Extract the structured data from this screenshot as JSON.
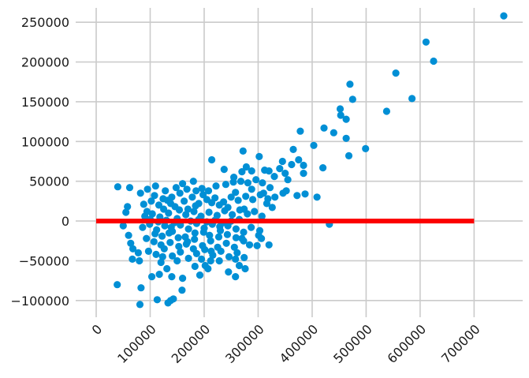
{
  "chart_data": {
    "type": "scatter",
    "title": "",
    "xlabel": "",
    "ylabel": "",
    "xlim": [
      -38000,
      790000
    ],
    "ylim": [
      -121000,
      268000
    ],
    "grid": true,
    "x_ticks": [
      0,
      100000,
      200000,
      300000,
      400000,
      500000,
      600000,
      700000
    ],
    "x_tick_labels": [
      "0",
      "100000",
      "200000",
      "300000",
      "400000",
      "500000",
      "600000",
      "700000"
    ],
    "y_ticks": [
      -100000,
      -50000,
      0,
      50000,
      100000,
      150000,
      200000,
      250000
    ],
    "y_tick_labels": [
      "−100000",
      "−50000",
      "0",
      "50000",
      "100000",
      "150000",
      "200000",
      "250000"
    ],
    "colors": {
      "points": "#008fd5",
      "hline": "#fc0000",
      "background": "#ffffff",
      "grid": "#cbcbcb"
    },
    "hline": {
      "y": 0,
      "xmin": 0,
      "xmax": 700000,
      "color": "#fc0000"
    },
    "series": [
      {
        "points": [
          [
            755000,
            258000
          ],
          [
            611000,
            225000
          ],
          [
            625000,
            201000
          ],
          [
            555000,
            186000
          ],
          [
            585000,
            154000
          ],
          [
            470000,
            172000
          ],
          [
            475000,
            153000
          ],
          [
            538000,
            138000
          ],
          [
            452000,
            141000
          ],
          [
            453000,
            133000
          ],
          [
            463000,
            128000
          ],
          [
            422000,
            117000
          ],
          [
            440000,
            111000
          ],
          [
            378000,
            113000
          ],
          [
            499000,
            91000
          ],
          [
            403000,
            95000
          ],
          [
            463000,
            104000
          ],
          [
            468000,
            82000
          ],
          [
            365000,
            90000
          ],
          [
            375000,
            77000
          ],
          [
            362000,
            71000
          ],
          [
            384000,
            70000
          ],
          [
            384000,
            60000
          ],
          [
            345000,
            75000
          ],
          [
            420000,
            67000
          ],
          [
            272000,
            88000
          ],
          [
            302000,
            81000
          ],
          [
            312000,
            64000
          ],
          [
            320000,
            63000
          ],
          [
            330000,
            56000
          ],
          [
            340000,
            66000
          ],
          [
            350000,
            60000
          ],
          [
            355000,
            52000
          ],
          [
            237000,
            65000
          ],
          [
            255000,
            55000
          ],
          [
            270000,
            62000
          ],
          [
            278000,
            68000
          ],
          [
            288000,
            63000
          ],
          [
            214000,
            77000
          ],
          [
            409000,
            30000
          ],
          [
            372000,
            32000
          ],
          [
            387000,
            34000
          ],
          [
            352000,
            38000
          ],
          [
            346000,
            35000
          ],
          [
            331000,
            30000
          ],
          [
            432000,
            -4000
          ],
          [
            310000,
            35000
          ],
          [
            322000,
            42000
          ],
          [
            40000,
            43000
          ],
          [
            62000,
            42000
          ],
          [
            58000,
            18000
          ],
          [
            55000,
            11000
          ],
          [
            50000,
            -6000
          ],
          [
            60000,
            -18000
          ],
          [
            64000,
            -28000
          ],
          [
            68000,
            -35000
          ],
          [
            67000,
            -48000
          ],
          [
            80000,
            -50000
          ],
          [
            78000,
            -40000
          ],
          [
            39000,
            -80000
          ],
          [
            83000,
            -84000
          ],
          [
            81000,
            -105000
          ],
          [
            113000,
            -99000
          ],
          [
            138000,
            -100000
          ],
          [
            143000,
            -98000
          ],
          [
            133000,
            -103000
          ],
          [
            103000,
            -70000
          ],
          [
            117000,
            -67000
          ],
          [
            120000,
            -52000
          ],
          [
            131000,
            -60000
          ],
          [
            140000,
            -70000
          ],
          [
            160000,
            -72000
          ],
          [
            159000,
            -87000
          ],
          [
            183000,
            -57000
          ],
          [
            192000,
            -68000
          ],
          [
            202000,
            -56000
          ],
          [
            207000,
            -60000
          ],
          [
            212000,
            -50000
          ],
          [
            228000,
            -50000
          ],
          [
            245000,
            -64000
          ],
          [
            258000,
            -70000
          ],
          [
            265000,
            -56000
          ],
          [
            276000,
            -60000
          ],
          [
            258000,
            -48000
          ],
          [
            274000,
            -46000
          ],
          [
            298000,
            -31000
          ],
          [
            320000,
            -30000
          ],
          [
            306000,
            -22000
          ],
          [
            82000,
            35000
          ],
          [
            95000,
            40000
          ],
          [
            110000,
            44000
          ],
          [
            128000,
            38000
          ],
          [
            148000,
            42000
          ],
          [
            160000,
            47000
          ],
          [
            180000,
            50000
          ],
          [
            196000,
            41000
          ],
          [
            208000,
            38000
          ],
          [
            222000,
            44000
          ],
          [
            240000,
            46000
          ],
          [
            254000,
            49000
          ],
          [
            268000,
            50000
          ],
          [
            281000,
            48000
          ],
          [
            296000,
            52000
          ],
          [
            308000,
            48000
          ],
          [
            88000,
            21000
          ],
          [
            102000,
            25000
          ],
          [
            116000,
            20000
          ],
          [
            132000,
            26000
          ],
          [
            146000,
            18000
          ],
          [
            163000,
            25000
          ],
          [
            178000,
            30000
          ],
          [
            190000,
            22000
          ],
          [
            205000,
            27000
          ],
          [
            220000,
            29000
          ],
          [
            236000,
            24000
          ],
          [
            250000,
            30000
          ],
          [
            263000,
            26000
          ],
          [
            277000,
            31000
          ],
          [
            290000,
            27000
          ],
          [
            304000,
            33000
          ],
          [
            316000,
            22000
          ],
          [
            326000,
            17000
          ],
          [
            90000,
            6000
          ],
          [
            104000,
            9000
          ],
          [
            118000,
            5000
          ],
          [
            134000,
            10000
          ],
          [
            150000,
            3000
          ],
          [
            166000,
            8000
          ],
          [
            181000,
            12000
          ],
          [
            194000,
            6000
          ],
          [
            209000,
            11000
          ],
          [
            224000,
            7000
          ],
          [
            238000,
            13000
          ],
          [
            252000,
            8000
          ],
          [
            266000,
            14000
          ],
          [
            280000,
            9000
          ],
          [
            293000,
            12000
          ],
          [
            307000,
            6000
          ],
          [
            86000,
            -8000
          ],
          [
            99000,
            -4000
          ],
          [
            112000,
            -11000
          ],
          [
            127000,
            -6000
          ],
          [
            141000,
            -13000
          ],
          [
            156000,
            -5000
          ],
          [
            171000,
            -10000
          ],
          [
            186000,
            -3000
          ],
          [
            200000,
            -9000
          ],
          [
            215000,
            -4000
          ],
          [
            230000,
            -12000
          ],
          [
            244000,
            -6000
          ],
          [
            259000,
            -10000
          ],
          [
            273000,
            -14000
          ],
          [
            287000,
            -8000
          ],
          [
            301000,
            -18000
          ],
          [
            93000,
            -22000
          ],
          [
            107000,
            -26000
          ],
          [
            122000,
            -19000
          ],
          [
            137000,
            -27000
          ],
          [
            152000,
            -21000
          ],
          [
            167000,
            -29000
          ],
          [
            182000,
            -23000
          ],
          [
            197000,
            -31000
          ],
          [
            212000,
            -25000
          ],
          [
            227000,
            -20000
          ],
          [
            241000,
            -28000
          ],
          [
            256000,
            -33000
          ],
          [
            270000,
            -22000
          ],
          [
            284000,
            -30000
          ],
          [
            97000,
            -38000
          ],
          [
            111000,
            -42000
          ],
          [
            126000,
            -35000
          ],
          [
            141000,
            -44000
          ],
          [
            156000,
            -39000
          ],
          [
            171000,
            -47000
          ],
          [
            186000,
            -41000
          ],
          [
            201000,
            -36000
          ],
          [
            216000,
            -43000
          ],
          [
            231000,
            -38000
          ],
          [
            246000,
            -45000
          ],
          [
            261000,
            -40000
          ],
          [
            100000,
            2000
          ],
          [
            115000,
            -1000
          ],
          [
            130000,
            1000
          ],
          [
            145000,
            -2000
          ],
          [
            175000,
            0
          ],
          [
            190000,
            2000
          ],
          [
            205000,
            -1000
          ],
          [
            220000,
            1000
          ],
          [
            235000,
            -2000
          ],
          [
            250000,
            0
          ],
          [
            265000,
            2000
          ],
          [
            125000,
            15000
          ],
          [
            140000,
            30000
          ],
          [
            155000,
            35000
          ],
          [
            170000,
            15000
          ],
          [
            185000,
            38000
          ],
          [
            120000,
            -30000
          ],
          [
            135000,
            -15000
          ],
          [
            150000,
            -50000
          ],
          [
            165000,
            -20000
          ],
          [
            180000,
            -35000
          ],
          [
            195000,
            -48000
          ],
          [
            210000,
            -18000
          ],
          [
            225000,
            -33000
          ],
          [
            108000,
            32000
          ],
          [
            123000,
            -45000
          ],
          [
            138000,
            22000
          ],
          [
            153000,
            -32000
          ],
          [
            168000,
            40000
          ],
          [
            183000,
            -15000
          ],
          [
            198000,
            33000
          ],
          [
            213000,
            -38000
          ],
          [
            228000,
            20000
          ],
          [
            243000,
            -17000
          ],
          [
            258000,
            36000
          ],
          [
            273000,
            -25000
          ],
          [
            288000,
            40000
          ],
          [
            303000,
            -12000
          ],
          [
            318000,
            28000
          ],
          [
            94000,
            12000
          ],
          [
            109000,
            -16000
          ],
          [
            124000,
            28000
          ],
          [
            139000,
            -8000
          ],
          [
            154000,
            14000
          ],
          [
            169000,
            -26000
          ],
          [
            184000,
            19000
          ],
          [
            199000,
            -14000
          ],
          [
            214000,
            23000
          ],
          [
            229000,
            -7000
          ],
          [
            244000,
            17000
          ],
          [
            259000,
            -21000
          ],
          [
            274000,
            15000
          ]
        ]
      }
    ]
  }
}
